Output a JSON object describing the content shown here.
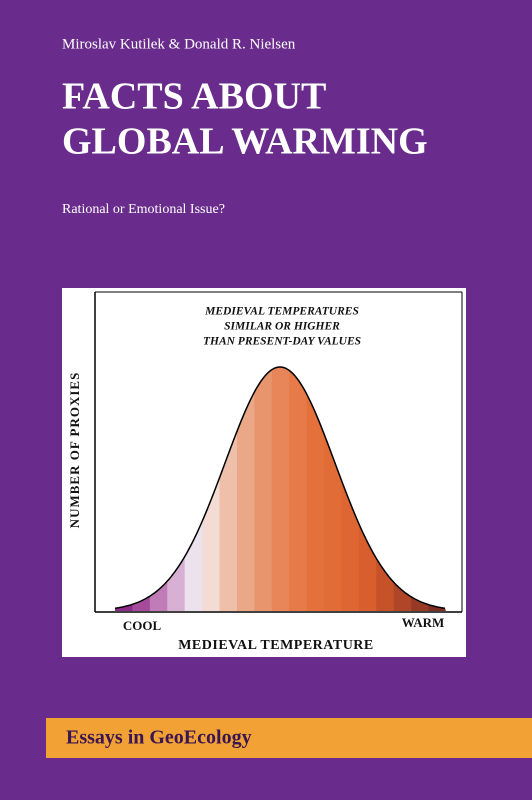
{
  "authors": "Miroslav Kutilek & Donald R. Nielsen",
  "title": [
    "FACTS ABOUT",
    "GLOBAL WARMING"
  ],
  "subtitle": "Rational or Emotional Issue?",
  "figure": {
    "annotation": [
      "MEDIEVAL TEMPERATURES",
      "SIMILAR OR HIGHER",
      "THAN PRESENT-DAY VALUES"
    ],
    "y_label": "NUMBER OF PROXIES",
    "x_left": "COOL",
    "x_right": "WARM",
    "x_label": "MEDIEVAL TEMPERATURE"
  },
  "series": "Essays in GeoEcology"
}
